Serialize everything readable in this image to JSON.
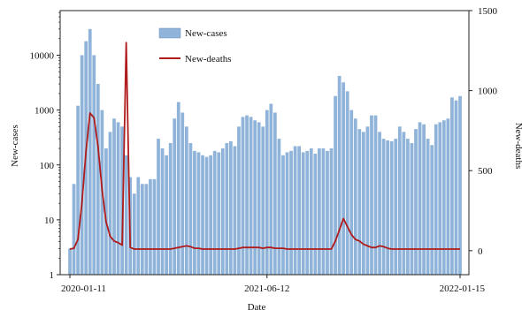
{
  "chart_data": {
    "type": "bar",
    "xlabel": "Date",
    "ylabel_left": "New-cases",
    "ylabel_right": "New-deaths",
    "x_tick_labels": [
      "2020-01-11",
      "2021-06-12",
      "2022-01-15"
    ],
    "y_left_scale": "log",
    "y_left_ticks": [
      "1",
      "10",
      "100",
      "1000",
      "10000"
    ],
    "y_left_lim": [
      1,
      65000
    ],
    "y_right_ticks": [
      "0",
      "500",
      "1000",
      "1500"
    ],
    "y_right_lim": [
      -150,
      1500
    ],
    "grid": false,
    "legend_placement": "top-left",
    "series": [
      {
        "name": "New-cases",
        "kind": "bar",
        "color": "#8fb3d9",
        "values": [
          3,
          45,
          1200,
          10000,
          18000,
          30000,
          10000,
          3000,
          1000,
          200,
          400,
          700,
          600,
          500,
          150,
          60,
          30,
          60,
          45,
          45,
          55,
          55,
          300,
          200,
          150,
          250,
          700,
          1400,
          900,
          500,
          250,
          180,
          170,
          150,
          140,
          150,
          180,
          170,
          200,
          250,
          270,
          220,
          500,
          750,
          800,
          750,
          650,
          600,
          500,
          1000,
          1300,
          900,
          300,
          150,
          170,
          180,
          220,
          220,
          170,
          180,
          200,
          160,
          200,
          200,
          180,
          200,
          1800,
          4200,
          3200,
          2200,
          1000,
          700,
          450,
          400,
          500,
          800,
          800,
          400,
          300,
          280,
          270,
          300,
          500,
          400,
          300,
          250,
          450,
          600,
          550,
          300,
          230,
          550,
          600,
          650,
          700,
          1700,
          1500,
          1800
        ]
      },
      {
        "name": "New-deaths",
        "kind": "line",
        "color": "#b01b1b",
        "values": [
          10,
          15,
          70,
          300,
          620,
          860,
          830,
          650,
          380,
          180,
          90,
          60,
          50,
          35,
          1300,
          20,
          10,
          10,
          10,
          10,
          10,
          10,
          10,
          10,
          10,
          10,
          15,
          20,
          25,
          30,
          25,
          15,
          15,
          10,
          10,
          10,
          10,
          10,
          10,
          10,
          10,
          10,
          15,
          20,
          20,
          20,
          20,
          20,
          15,
          20,
          20,
          15,
          15,
          15,
          10,
          10,
          10,
          10,
          10,
          10,
          10,
          10,
          10,
          10,
          10,
          10,
          60,
          130,
          200,
          150,
          100,
          70,
          60,
          40,
          30,
          20,
          20,
          30,
          25,
          15,
          10,
          10,
          10,
          10,
          10,
          10,
          10,
          10,
          10,
          10,
          10,
          10,
          10,
          10,
          10,
          10,
          10,
          10
        ]
      }
    ]
  }
}
